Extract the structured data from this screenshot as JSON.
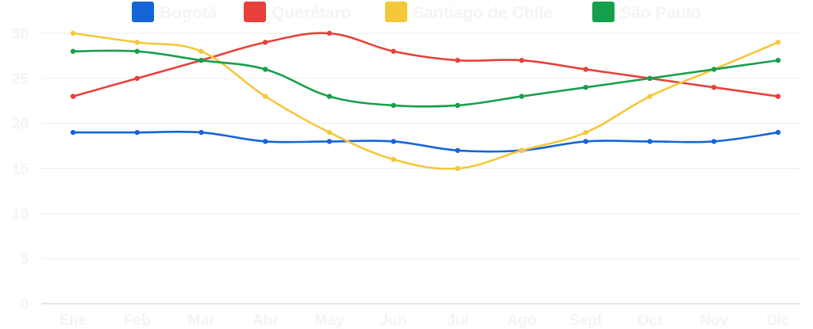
{
  "chart_data": {
    "type": "line",
    "categories": [
      "Ene",
      "Feb",
      "Mar",
      "Abr",
      "May",
      "Jun",
      "Jul",
      "Ago",
      "Sept",
      "Oct",
      "Nov",
      "Dic"
    ],
    "series": [
      {
        "name": "Bogotá",
        "color": "#1565d8",
        "values": [
          19,
          19,
          19,
          18,
          18,
          18,
          17,
          17,
          18,
          18,
          18,
          19
        ]
      },
      {
        "name": "Querétaro",
        "color": "#e8403a",
        "values": [
          23,
          25,
          27,
          29,
          30,
          28,
          27,
          27,
          26,
          25,
          24,
          23
        ]
      },
      {
        "name": "Santiago de Chile",
        "color": "#f5c83a",
        "values": [
          30,
          29,
          28,
          23,
          19,
          16,
          15,
          17,
          19,
          23,
          26,
          29
        ]
      },
      {
        "name": "São Paulo",
        "color": "#16a04b",
        "values": [
          28,
          28,
          27,
          26,
          23,
          22,
          22,
          23,
          24,
          25,
          26,
          27
        ]
      }
    ],
    "yticks": [
      "0",
      "5",
      "10",
      "15",
      "20",
      "25",
      "30"
    ],
    "ylim": [
      0,
      30
    ],
    "grid": true,
    "legend_position": "top",
    "curve": "smooth"
  }
}
